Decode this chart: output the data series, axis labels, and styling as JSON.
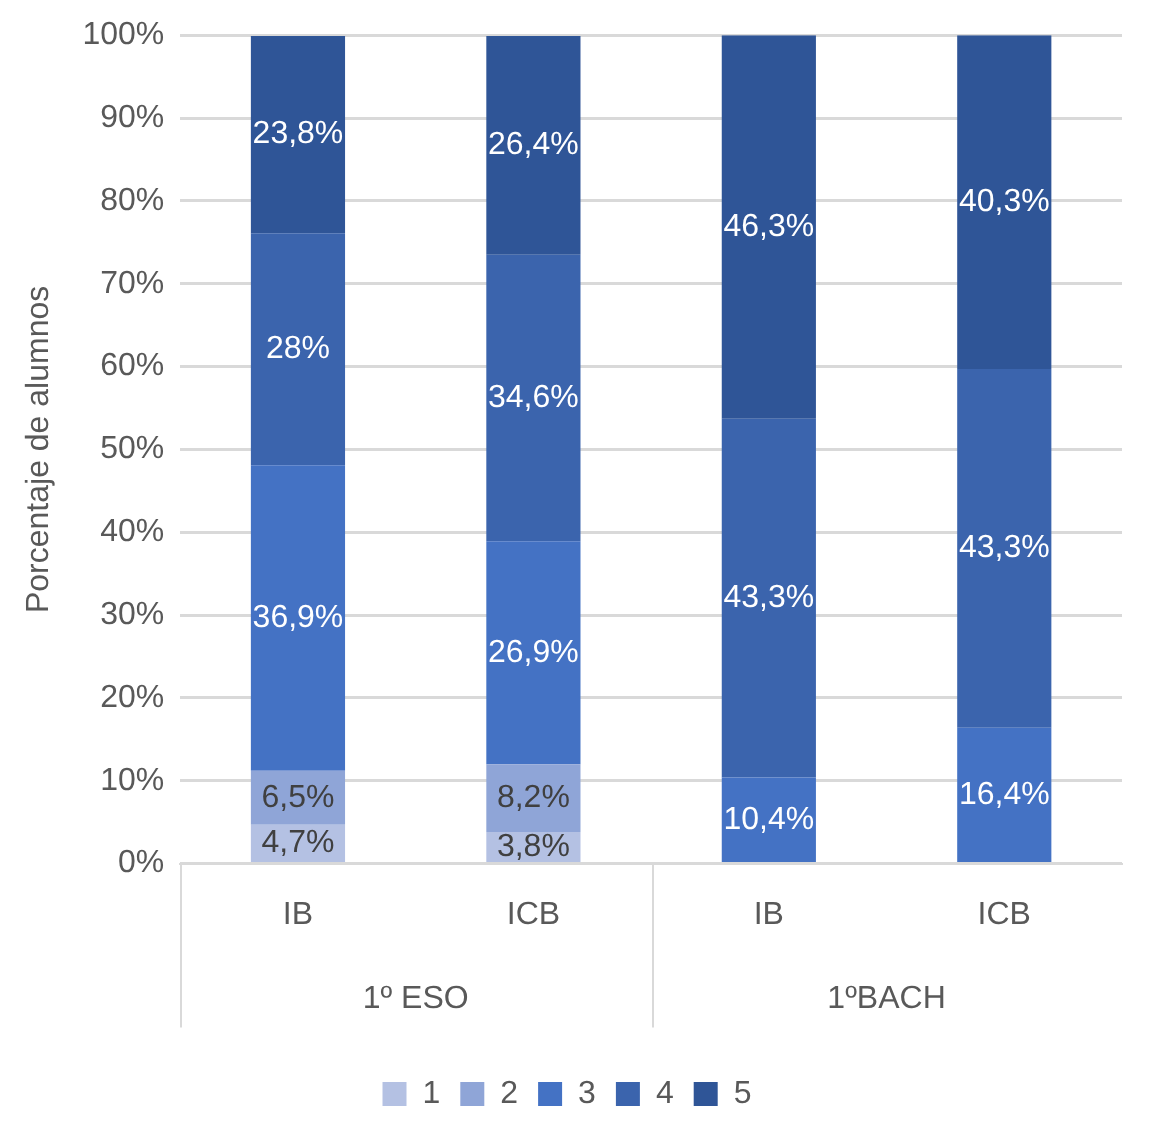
{
  "chart_data": {
    "type": "bar",
    "stacked": true,
    "ylabel": "Porcentaje de alumnos",
    "categories": [
      "IB",
      "ICB",
      "IB",
      "ICB"
    ],
    "annotations": [
      "1º ESO",
      "1ºBACH"
    ],
    "series": [
      {
        "name": "1",
        "color": "#b4c1e3",
        "values": [
          4.7,
          3.8,
          null,
          null
        ],
        "value_labels": [
          "4,7%",
          "3,8%",
          null,
          null
        ]
      },
      {
        "name": "2",
        "color": "#8fa5d7",
        "values": [
          6.5,
          8.2,
          null,
          null
        ],
        "value_labels": [
          "6,5%",
          "8,2%",
          null,
          null
        ]
      },
      {
        "name": "3",
        "color": "#4472c4",
        "values": [
          36.9,
          26.9,
          10.4,
          16.4
        ],
        "value_labels": [
          "36,9%",
          "26,9%",
          "10,4%",
          "16,4%"
        ]
      },
      {
        "name": "4",
        "color": "#3b64ad",
        "values": [
          28,
          34.6,
          43.3,
          43.3
        ],
        "value_labels": [
          "28%",
          "34,6%",
          "43,3%",
          "43,3%"
        ]
      },
      {
        "name": "5",
        "color": "#2f5597",
        "values": [
          23.8,
          26.4,
          46.3,
          40.3
        ],
        "value_labels": [
          "23,8%",
          "26,4%",
          "46,3%",
          "40,3%"
        ]
      }
    ],
    "ylim": [
      0,
      100
    ],
    "yticks": [
      {
        "value": 0,
        "label": "0%"
      },
      {
        "value": 10,
        "label": "10%"
      },
      {
        "value": 20,
        "label": "20%"
      },
      {
        "value": 30,
        "label": "30%"
      },
      {
        "value": 40,
        "label": "40%"
      },
      {
        "value": 50,
        "label": "50%"
      },
      {
        "value": 60,
        "label": "60%"
      },
      {
        "value": 70,
        "label": "70%"
      },
      {
        "value": 80,
        "label": "80%"
      },
      {
        "value": 90,
        "label": "90%"
      },
      {
        "value": 100,
        "label": "100%"
      }
    ],
    "grid": "y",
    "legend": "bottom"
  }
}
